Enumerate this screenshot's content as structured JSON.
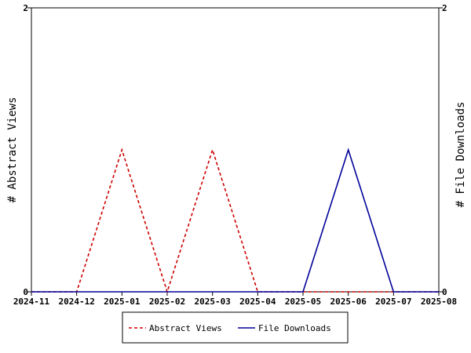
{
  "chart_data": {
    "type": "line",
    "x": [
      "2024-11",
      "2024-12",
      "2025-01",
      "2025-02",
      "2025-03",
      "2025-04",
      "2025-05",
      "2025-06",
      "2025-07",
      "2025-08"
    ],
    "series": [
      {
        "name": "Abstract Views",
        "color": "#cc0000",
        "dash": "dashed",
        "axis": "left",
        "values": [
          0,
          0,
          1,
          0,
          1,
          0,
          0,
          0,
          0,
          0
        ]
      },
      {
        "name": "File Downloads",
        "color": "#000099",
        "dash": "solid",
        "axis": "right",
        "values": [
          0,
          0,
          0,
          0,
          0,
          0,
          0,
          1,
          0,
          0
        ]
      }
    ],
    "ylabel_left": "# Abstract Views",
    "ylabel_right": "# File Downloads",
    "ylim_left": [
      0,
      2
    ],
    "ylim_right": [
      0,
      2
    ],
    "yticks_left": [
      "0",
      "2"
    ],
    "yticks_right": [
      "0",
      "2"
    ],
    "grid": false,
    "legend_position": "bottom-center"
  }
}
